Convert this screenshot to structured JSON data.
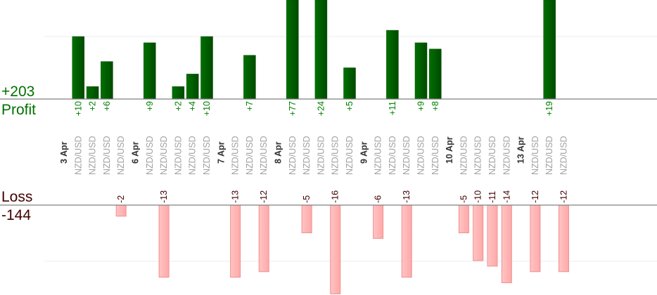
{
  "chart_data": {
    "type": "bar",
    "profit": {
      "label": "Profit",
      "total": "+203",
      "color": "#006400",
      "label_color": "#008000"
    },
    "loss": {
      "label": "Loss",
      "total": "-144",
      "color": "#ffb3b3",
      "label_color": "#400000"
    },
    "groups": [
      {
        "date": "3 Apr",
        "trades": [
          {
            "pair": "NZD/USD",
            "value": 10
          },
          {
            "pair": "NZD/USD",
            "value": 2
          },
          {
            "pair": "NZD/USD",
            "value": 6
          },
          {
            "pair": "NZD/USD",
            "value": -2
          }
        ]
      },
      {
        "date": "6 Apr",
        "trades": [
          {
            "pair": "NZD/USD",
            "value": 9
          },
          {
            "pair": "NZD/USD",
            "value": -13
          },
          {
            "pair": "NZD/USD",
            "value": 2
          },
          {
            "pair": "NZD/USD",
            "value": 4
          },
          {
            "pair": "NZD/USD",
            "value": 10
          }
        ]
      },
      {
        "date": "7 Apr",
        "trades": [
          {
            "pair": "NZD/USD",
            "value": -13
          },
          {
            "pair": "NZD/USD",
            "value": 7
          },
          {
            "pair": "NZD/USD",
            "value": -12
          }
        ]
      },
      {
        "date": "8 Apr",
        "trades": [
          {
            "pair": "NZD/USD",
            "value": 77
          },
          {
            "pair": "NZD/USD",
            "value": -5
          },
          {
            "pair": "NZD/USD",
            "value": 24
          },
          {
            "pair": "NZD/USD",
            "value": -16
          },
          {
            "pair": "NZD/USD",
            "value": 5
          }
        ]
      },
      {
        "date": "9 Apr",
        "trades": [
          {
            "pair": "NZD/USD",
            "value": -6
          },
          {
            "pair": "NZD/USD",
            "value": 11
          },
          {
            "pair": "NZD/USD",
            "value": -13
          },
          {
            "pair": "NZD/USD",
            "value": 9
          },
          {
            "pair": "NZD/USD",
            "value": 8
          }
        ]
      },
      {
        "date": "10 Apr",
        "trades": [
          {
            "pair": "NZD/USD",
            "value": -5
          },
          {
            "pair": "NZD/USD",
            "value": -10
          },
          {
            "pair": "NZD/USD",
            "value": -11
          },
          {
            "pair": "NZD/USD",
            "value": -14
          }
        ]
      },
      {
        "date": "13 Apr",
        "trades": [
          {
            "pair": "NZD/USD",
            "value": -12
          },
          {
            "pair": "NZD/USD",
            "value": 19
          },
          {
            "pair": "NZD/USD",
            "value": -12
          }
        ]
      }
    ],
    "grid": true
  }
}
